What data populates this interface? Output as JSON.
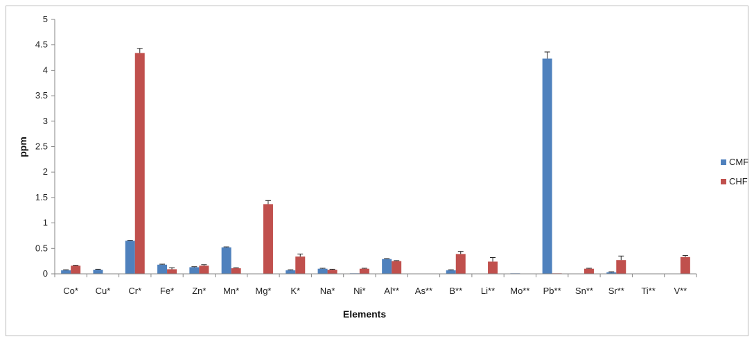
{
  "chart_data": {
    "type": "bar",
    "title": "",
    "xlabel": "Elements",
    "ylabel": "ppm",
    "ylim": [
      0,
      5
    ],
    "yticks": [
      0,
      0.5,
      1,
      1.5,
      2,
      2.5,
      3,
      3.5,
      4,
      4.5,
      5
    ],
    "ytick_labels": [
      "0",
      "0.5",
      "1",
      "1.5",
      "2",
      "2.5",
      "3",
      "3.5",
      "4",
      "4.5",
      "5"
    ],
    "grid": false,
    "legend_position": "right",
    "categories": [
      "Co*",
      "Cu*",
      "Cr*",
      "Fe*",
      "Zn*",
      "Mn*",
      "Mg*",
      "K*",
      "Na*",
      "Ni*",
      "Al**",
      "As**",
      "B**",
      "Li**",
      "Mo**",
      "Pb**",
      "Sn**",
      "Sr**",
      "Ti**",
      "V**"
    ],
    "series": [
      {
        "name": "CMF",
        "color": "#4f81bd",
        "values": [
          0.07,
          0.08,
          0.65,
          0.18,
          0.13,
          0.52,
          0.0,
          0.07,
          0.1,
          0.01,
          0.29,
          0.0,
          0.07,
          0.0,
          0.01,
          4.23,
          0.0,
          0.03,
          0.0,
          0.0
        ],
        "errors": [
          0.01,
          0.01,
          0.01,
          0.01,
          0.01,
          0.01,
          0.0,
          0.01,
          0.01,
          0.0,
          0.01,
          0.0,
          0.01,
          0.0,
          0.0,
          0.13,
          0.0,
          0.01,
          0.0,
          0.0
        ]
      },
      {
        "name": "CHF",
        "color": "#c0504d",
        "values": [
          0.16,
          0.0,
          4.34,
          0.09,
          0.16,
          0.11,
          1.37,
          0.34,
          0.08,
          0.1,
          0.25,
          0.0,
          0.39,
          0.24,
          0.0,
          0.01,
          0.1,
          0.27,
          0.0,
          0.33
        ],
        "errors": [
          0.01,
          0.0,
          0.09,
          0.03,
          0.02,
          0.01,
          0.07,
          0.05,
          0.01,
          0.01,
          0.01,
          0.0,
          0.05,
          0.08,
          0.0,
          0.0,
          0.01,
          0.08,
          0.0,
          0.03
        ]
      }
    ]
  }
}
